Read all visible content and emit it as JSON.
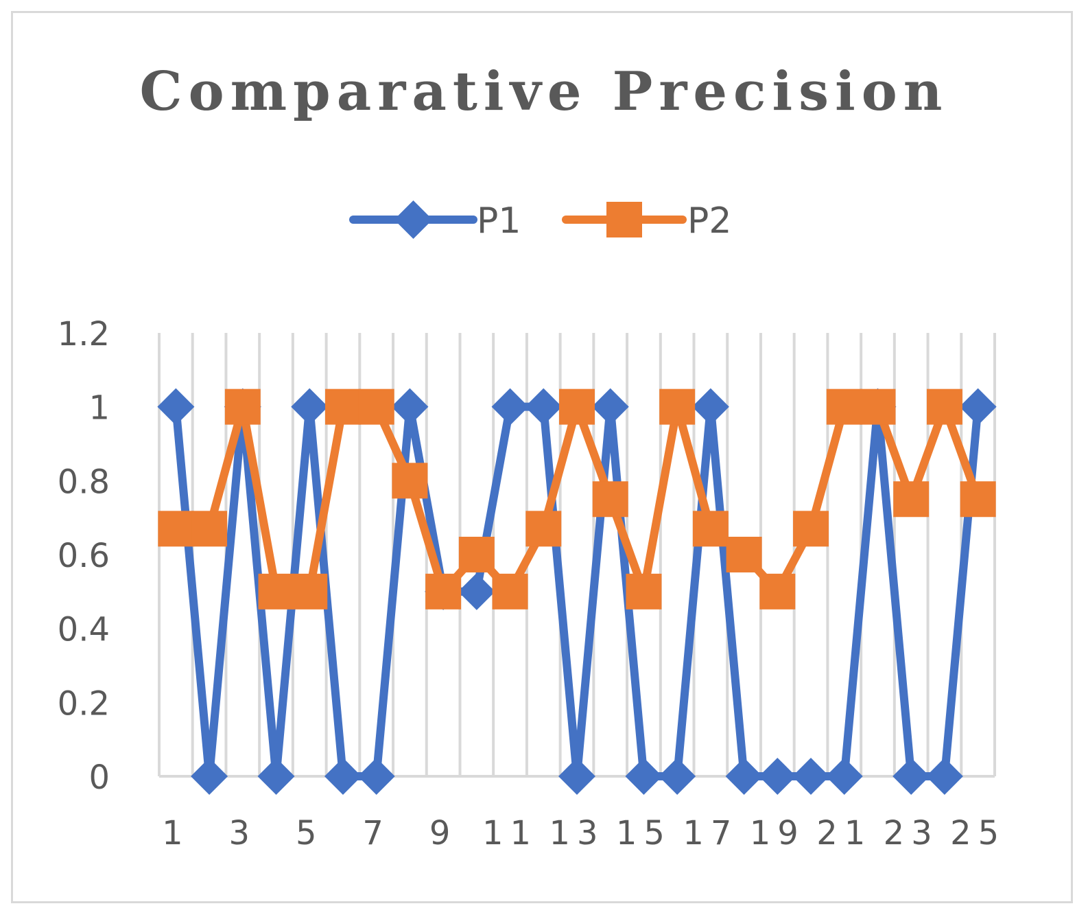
{
  "chart_data": {
    "type": "line",
    "title": "Comparative Precision",
    "xlabel": "",
    "ylabel": "",
    "x": [
      1,
      2,
      3,
      4,
      5,
      6,
      7,
      8,
      9,
      10,
      11,
      12,
      13,
      14,
      15,
      16,
      17,
      18,
      19,
      20,
      21,
      22,
      23,
      24,
      25
    ],
    "x_tick_labels": [
      "1",
      "3",
      "5",
      "7",
      "9",
      "11",
      "13",
      "15",
      "17",
      "19",
      "21",
      "23",
      "25"
    ],
    "y_tick_labels": [
      "0",
      "0.2",
      "0.4",
      "0.6",
      "0.8",
      "1",
      "1.2"
    ],
    "ylim": [
      0,
      1.2
    ],
    "grid": "vertical",
    "legend": "top-center",
    "series": [
      {
        "name": "P1",
        "color": "#4472c4",
        "marker": "diamond",
        "values": [
          1,
          0,
          1,
          0,
          1,
          0,
          0,
          1,
          0.5,
          0.5,
          1,
          1,
          0,
          1,
          0,
          0,
          1,
          0,
          0,
          0,
          0,
          1,
          0,
          0,
          1
        ]
      },
      {
        "name": "P2",
        "color": "#ed7d31",
        "marker": "square",
        "values": [
          0.67,
          0.67,
          1,
          0.5,
          0.5,
          1,
          1,
          0.8,
          0.5,
          0.6,
          0.5,
          0.67,
          1,
          0.75,
          0.5,
          1,
          0.67,
          0.6,
          0.5,
          0.67,
          1,
          1,
          0.75,
          1,
          0.75
        ]
      }
    ]
  }
}
